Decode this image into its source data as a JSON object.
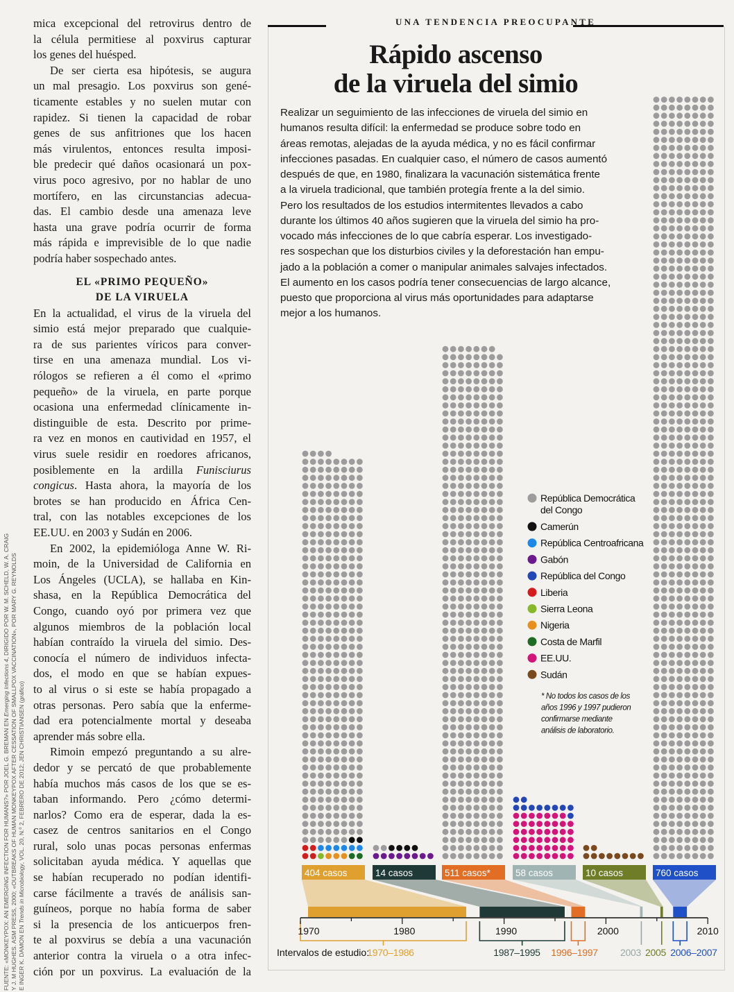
{
  "article": {
    "paragraphs": [
      {
        "indent": false,
        "lines": [
          "mica excepcional del retrovirus dentro de",
          "la célula permitiese al poxvirus capturar",
          "los genes del huésped."
        ]
      },
      {
        "indent": true,
        "lines": [
          "De ser cierta esa hipótesis, se augura",
          "un mal presagio. Los poxvirus son gené-",
          "ticamente estables y no suelen mutar con",
          "rapidez. Si tienen la capacidad de robar",
          "genes de sus anfitriones que los hacen",
          "más virulentos, entonces resulta imposi-",
          "ble predecir qué daños ocasionará un pox-",
          "virus poco agresivo, por no hablar de uno",
          "mortífero, en las circunstancias adecua-",
          "das. El cambio desde una amenaza leve",
          "hasta una grave podría ocurrir de forma",
          "más rápida e imprevisible de lo que nadie",
          "podría haber sospechado antes."
        ]
      },
      {
        "heading": [
          "EL «PRIMO PEQUEÑO»",
          "DE LA VIRUELA"
        ]
      },
      {
        "indent": false,
        "lines": [
          "En la actualidad, el virus de la viruela del",
          "simio está mejor preparado que cualquie-",
          "ra de sus parientes víricos para conver-",
          "tirse en una amenaza mundial. Los vi-",
          "rólogos se refieren a él como el «primo",
          "pequeño» de la viruela, en parte porque",
          "ocasiona una enfermedad clínicamente in-",
          "distinguible de esta. Descrito por prime-",
          "ra vez en monos en cautividad en 1957, el",
          "virus suele residir en roedores africanos,",
          [
            "posiblemente en la ardilla ",
            "Funisciurus",
            ""
          ],
          [
            "",
            "congicus",
            ". Hasta ahora, la mayoría de los"
          ],
          "brotes se han producido en África Cen-",
          "tral, con las notables excepciones de los",
          "EE.UU. en 2003 y Sudán en 2006."
        ]
      },
      {
        "indent": true,
        "lines": [
          "En 2002, la epidemióloga Anne W. Ri-",
          "moin, de la Universidad de California en",
          "Los Ángeles (UCLA), se hallaba en Kin-",
          "shasa, en la República Democrática del",
          "Congo, cuando oyó por primera vez que",
          "algunos miembros de la población local",
          "habían contraído la viruela del simio. Des-",
          "conocía el número de individuos infecta-",
          "dos, el modo en que se habían expues-",
          "to al virus o si este se había propagado a",
          "otras personas. Pero sabía que la enferme-",
          "dad era potencialmente mortal y deseaba",
          "aprender más sobre ella."
        ]
      },
      {
        "indent": true,
        "continues": true,
        "lines": [
          "Rimoin empezó preguntando a su alre-",
          "dedor y se percató de que probablemente",
          "había muchos más casos de los que se es-",
          "taban informando. Pero ¿cómo determi-",
          "narlos? Como era de esperar, dada la es-",
          "casez de centros sanitarios en el Congo",
          "rural, solo unas pocas personas enfermas",
          "solicitaban ayuda médica. Y aquellas que",
          "se habían recuperado no podían identifi-",
          "carse fácilmente a través de análisis san-",
          "guíneos, porque no había forma de saber",
          "si la presencia de los anticuerpos fren-",
          "te al poxvirus se debía a una vacunación",
          "anterior contra la viruela o a otra infec-",
          "ción por un poxvirus. La evaluación de la"
        ]
      }
    ]
  },
  "credits": {
    "lines": [
      [
        "FUENTE: «MONKEYPOX: AN EMERGING INFECTION FOR HUMANS?» POR JOEL G. BREMAN EN ",
        "Emerging Infections 4",
        ", DIRIGIDO POR W. M. SCHELD, W. A. CRAIG"
      ],
      [
        "Y J. M HUGHES. ASM PRESS, 2000; «OUTBREAKS OF HUMAN MONKEYPOX AFTER CESSATION OF SMALLPOX VACCINATION», POR MARY G. REYNOLDS",
        "",
        ""
      ],
      [
        "E INGER K. DAMON EN ",
        "Trends in Microbiology",
        ", VOL. 20, N.º 2, FEBRERO DE 2012; JEN CHRISTIANSEN (",
        "gráfico",
        ")"
      ]
    ]
  },
  "infographic": {
    "kicker": "UNA TENDENCIA PREOCUPANTE",
    "title_lines": [
      "Rápido ascenso",
      "de la viruela del simio"
    ],
    "intro_lines": [
      "Realizar un seguimiento de las infecciones de viruela del simio en",
      "humanos resulta difícil: la enfermedad se produce sobre todo en",
      "áreas remotas, alejadas de la ayuda médica, y no es fácil confirmar",
      "infecciones pasadas. En cualquier caso, el número de casos aumentó",
      "después de que, en 1980, finalizara la vacunación sistemática frente",
      "a la viruela tradicional, que también protegía frente a la del simio.",
      "Pero los resultados de los estudios intermitentes llevados a cabo",
      "durante los últimos 40 años sugieren que la viruela del simio ha pro-",
      "vocado más infecciones de lo que cabría esperar. Los investigado-",
      "res sospechan que los disturbios civiles y la deforestación han empu-",
      "jado a la población a comer o manipular animales salvajes infectados.",
      "El aumento en los casos podría tener consecuencias de largo alcance,",
      "puesto que proporciona al virus más oportunidades para adaptarse",
      "mejor a los humanos."
    ],
    "footnote_lines": [
      "* No todos los casos de los",
      "años 1996 y 1997 pudieron",
      "confirmarse mediante",
      "análisis de laboratorio."
    ]
  },
  "chart_data": {
    "type": "dot-matrix",
    "unit": "one dot = one case",
    "legend": [
      {
        "key": "rdc",
        "label": "República Democrática del Congo",
        "label_lines": [
          "República Democrática",
          "del Congo"
        ],
        "color": "#9c9c9c"
      },
      {
        "key": "cam",
        "label": "Camerún",
        "color": "#111111"
      },
      {
        "key": "car",
        "label": "República Centroafricana",
        "color": "#1e88e8"
      },
      {
        "key": "gab",
        "label": "Gabón",
        "color": "#6a1a8c"
      },
      {
        "key": "rc",
        "label": "República del Congo",
        "color": "#2447b8"
      },
      {
        "key": "lib",
        "label": "Liberia",
        "color": "#d41c1c"
      },
      {
        "key": "sl",
        "label": "Sierra Leona",
        "color": "#86b82a"
      },
      {
        "key": "nig",
        "label": "Nigeria",
        "color": "#e8901e"
      },
      {
        "key": "cm",
        "label": "Costa de Marfil",
        "color": "#1d6b24"
      },
      {
        "key": "us",
        "label": "EE.UU.",
        "color": "#d4147a"
      },
      {
        "key": "sud",
        "label": "Sudán",
        "color": "#7a4a1e"
      }
    ],
    "axis": {
      "label": "Intervalos de estudio:",
      "range": [
        1970,
        2010
      ],
      "ticks": [
        1970,
        1980,
        1990,
        2000,
        2010
      ]
    },
    "intervals": [
      {
        "label": "1970–1986",
        "start": 1970,
        "end": 1986,
        "total": 404,
        "box_label": "404 casos",
        "color": "#e0a030",
        "runs": [
          [
            "lib",
            2
          ],
          [
            "sl",
            1
          ],
          [
            "nig",
            3
          ],
          [
            "cm",
            2
          ],
          [
            "lib",
            2
          ],
          [
            "car",
            6
          ],
          [
            "rdc",
            6
          ],
          [
            "cam",
            2
          ],
          [
            "rdc",
            380
          ]
        ]
      },
      {
        "label": "1987–1995",
        "start": 1987,
        "end": 1995,
        "total": 14,
        "box_label": "14 casos",
        "color": "#1f3a36",
        "runs": [
          [
            "gab",
            8
          ],
          [
            "rdc",
            2
          ],
          [
            "cam",
            4
          ]
        ]
      },
      {
        "label": "1996–1997",
        "start": 1996,
        "end": 1997,
        "total": 511,
        "box_label": "511 casos*",
        "color": "#e26e26",
        "runs": [
          [
            "rdc",
            511
          ]
        ]
      },
      {
        "label": "2003",
        "start": 2003,
        "end": 2003,
        "total": 58,
        "box_label": "58 casos",
        "color": "#9fb4b3",
        "runs": [
          [
            "us",
            47
          ],
          [
            "rc",
            11
          ]
        ]
      },
      {
        "label": "2005",
        "start": 2005,
        "end": 2005,
        "total": 10,
        "box_label": "10 casos",
        "color": "#6f7d28",
        "runs": [
          [
            "sud",
            10
          ]
        ]
      },
      {
        "label": "2006–2007",
        "start": 2006,
        "end": 2007,
        "total": 760,
        "box_label": "760 casos",
        "color": "#1f50c8",
        "runs": [
          [
            "rdc",
            760
          ]
        ]
      }
    ]
  }
}
